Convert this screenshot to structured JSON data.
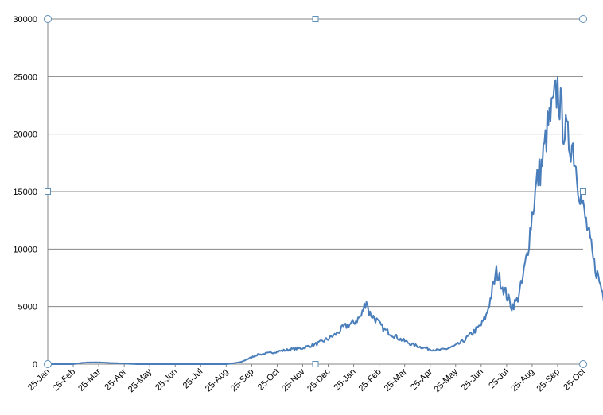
{
  "chart_data": {
    "type": "line",
    "title": "",
    "xlabel": "",
    "ylabel": "",
    "ylim": [
      0,
      30000
    ],
    "yticks": [
      0,
      5000,
      10000,
      15000,
      20000,
      25000,
      30000
    ],
    "ytick_labels": [
      "0",
      "5000",
      "10000",
      "15000",
      "20000",
      "25000",
      "30000"
    ],
    "xticks": [
      "25-Jan",
      "25-Feb",
      "25-Mar",
      "25-Apr",
      "25-May",
      "25-Jun",
      "25-Jul",
      "25-Aug",
      "25-Sep",
      "25-Oct",
      "25-Nov",
      "25-Dec",
      "25-Jan",
      "25-Feb",
      "25-Mar",
      "25-Apr",
      "25-May",
      "25-Jun",
      "25-Jul",
      "25-Aug",
      "25-Sep",
      "25-Oct"
    ],
    "grid": "horizontal",
    "legend": "none",
    "line_color": "#4a7ebb",
    "series": [
      {
        "x": [
          0.0,
          0.5,
          1.0,
          1.3,
          1.6,
          2.0,
          2.5,
          3.0,
          3.5,
          4.0,
          4.5,
          5.0,
          5.5,
          6.0,
          6.5,
          7.0,
          7.3,
          7.6,
          8.0,
          8.2,
          8.5,
          8.8,
          9.0,
          9.3,
          9.6,
          10.0,
          10.3,
          10.6,
          11.0,
          11.3,
          11.6,
          12.0,
          12.3,
          12.5,
          12.6,
          12.9,
          13.0,
          13.2,
          13.5,
          13.8,
          14.0,
          14.3,
          14.6,
          15.0,
          15.3,
          15.6,
          16.0,
          16.3,
          16.6,
          17.0,
          17.2,
          17.4,
          17.6,
          17.8,
          18.0,
          18.2,
          18.4,
          18.6,
          18.8,
          19.0,
          19.2,
          19.4,
          19.6,
          19.8,
          20.0,
          20.2,
          20.4,
          20.6,
          20.8,
          21.0,
          21.2,
          21.4,
          21.6,
          21.8,
          22.0
        ],
        "values": [
          0,
          0,
          0,
          100,
          150,
          150,
          100,
          50,
          0,
          0,
          0,
          0,
          0,
          0,
          0,
          0,
          80,
          200,
          600,
          800,
          900,
          1000,
          1100,
          1200,
          1300,
          1400,
          1600,
          1800,
          2200,
          2600,
          3200,
          3600,
          4200,
          5600,
          4500,
          3800,
          3500,
          3000,
          2600,
          2200,
          2000,
          1700,
          1500,
          1300,
          1200,
          1300,
          1600,
          2000,
          2600,
          3400,
          4200,
          6000,
          8000,
          7000,
          6000,
          5000,
          5500,
          7000,
          9500,
          13000,
          16000,
          17500,
          20500,
          22000,
          24000,
          21000,
          19500,
          19000,
          16000,
          13500,
          11500,
          9000,
          7500,
          6000,
          5500
        ]
      }
    ]
  }
}
